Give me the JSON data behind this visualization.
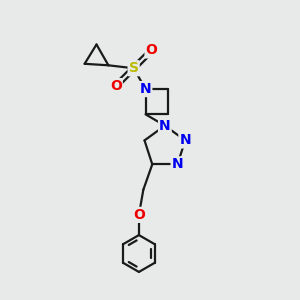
{
  "background_color": "#e8eaea",
  "bond_color": "#1a1a1a",
  "bond_width": 1.6,
  "atom_colors": {
    "N": "#0000ee",
    "O": "#ee0000",
    "S": "#bbbb00",
    "C": "#1a1a1a"
  },
  "font_size_atom": 10,
  "figsize": [
    3.0,
    3.0
  ],
  "dpi": 100
}
